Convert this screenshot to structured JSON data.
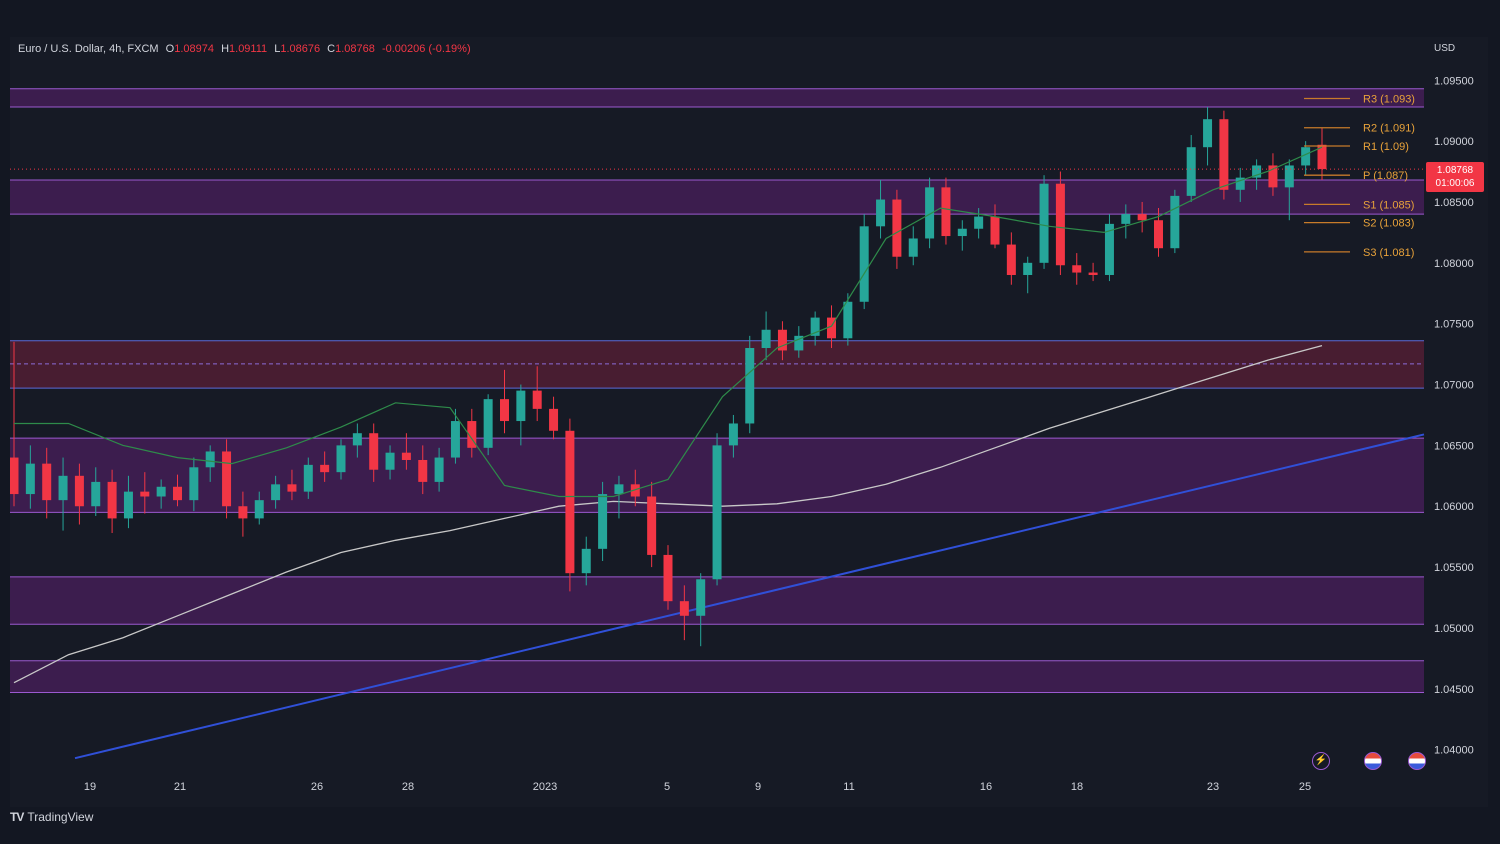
{
  "legend": {
    "symbol": "Euro / U.S. Dollar, 4h, FXCM",
    "open_key": "O",
    "open": "1.08974",
    "high_key": "H",
    "high": "1.09111",
    "low_key": "L",
    "low": "1.08676",
    "close_key": "C",
    "close": "1.08768",
    "change": "-0.00206 (-0.19%)"
  },
  "currency": "USD",
  "price_tag": {
    "price": "1.08768",
    "countdown": "01:00:06"
  },
  "brand": "TradingView",
  "colors": {
    "background": "#131722",
    "panel": "#161a25",
    "up": "#26a69a",
    "down": "#f23645",
    "zone": "#4a1f5c",
    "zone_red": "#5a1f35",
    "trendline": "#3050d8",
    "ma_long": "#c8c8c8",
    "ma_short": "#2e8b4a",
    "pivot": "#c77b2a",
    "text": "#d1d4dc"
  },
  "chart_data": {
    "type": "candlestick",
    "ylim": [
      1.038,
      1.0965
    ],
    "y_ticks": [
      "1.09500",
      "1.09000",
      "1.08500",
      "1.08000",
      "1.07500",
      "1.07000",
      "1.06500",
      "1.06000",
      "1.05500",
      "1.05000",
      "1.04500",
      "1.04000"
    ],
    "x_ticks": [
      "19",
      "21",
      "26",
      "28",
      "2023",
      "5",
      "9",
      "11",
      "16",
      "18",
      "23",
      "25"
    ],
    "zones": [
      {
        "from": 1.0928,
        "to": 1.0943,
        "color": "purple"
      },
      {
        "from": 1.084,
        "to": 1.0868,
        "color": "purple"
      },
      {
        "from": 1.0697,
        "to": 1.0736,
        "color": "red",
        "mid": 1.0717
      },
      {
        "from": 1.0595,
        "to": 1.0656,
        "color": "purple"
      },
      {
        "from": 1.0503,
        "to": 1.0542,
        "color": "purple"
      },
      {
        "from": 1.0447,
        "to": 1.0473,
        "color": "purple"
      }
    ],
    "pivots": [
      {
        "label": "R3 (1.093)",
        "value": 1.0935
      },
      {
        "label": "R2 (1.091)",
        "value": 1.0911
      },
      {
        "label": "R1 (1.09)",
        "value": 1.0896
      },
      {
        "label": "P (1.087)",
        "value": 1.0872
      },
      {
        "label": "S1 (1.085)",
        "value": 1.0848
      },
      {
        "label": "S2 (1.083)",
        "value": 1.0833
      },
      {
        "label": "S3 (1.081)",
        "value": 1.0809
      }
    ],
    "trendline": {
      "from": 1.0393,
      "to": 1.0659
    },
    "ma_long": [
      1.0455,
      1.0478,
      1.0492,
      1.051,
      1.0528,
      1.0546,
      1.0562,
      1.0572,
      1.058,
      1.059,
      1.06,
      1.0604,
      1.0602,
      1.06,
      1.0602,
      1.0608,
      1.0618,
      1.0632,
      1.0648,
      1.0664,
      1.0678,
      1.0692,
      1.0706,
      1.072,
      1.0732
    ],
    "ma_short": [
      1.0668,
      1.0668,
      1.065,
      1.064,
      1.0635,
      1.0648,
      1.0665,
      1.0685,
      1.0681,
      1.0617,
      1.0608,
      1.0608,
      1.0622,
      1.069,
      1.073,
      1.0748,
      1.082,
      1.0845,
      1.0838,
      1.083,
      1.0825,
      1.0838,
      1.086,
      1.0875,
      1.0895
    ],
    "candles": [
      {
        "o": 1.064,
        "h": 1.0735,
        "l": 1.06,
        "c": 1.061
      },
      {
        "o": 1.061,
        "h": 1.065,
        "l": 1.0598,
        "c": 1.0635
      },
      {
        "o": 1.0635,
        "h": 1.0648,
        "l": 1.059,
        "c": 1.0605
      },
      {
        "o": 1.0605,
        "h": 1.064,
        "l": 1.058,
        "c": 1.0625
      },
      {
        "o": 1.0625,
        "h": 1.0635,
        "l": 1.0585,
        "c": 1.06
      },
      {
        "o": 1.06,
        "h": 1.0632,
        "l": 1.0592,
        "c": 1.062
      },
      {
        "o": 1.062,
        "h": 1.063,
        "l": 1.0578,
        "c": 1.059
      },
      {
        "o": 1.059,
        "h": 1.0625,
        "l": 1.0582,
        "c": 1.0612
      },
      {
        "o": 1.0612,
        "h": 1.0628,
        "l": 1.0594,
        "c": 1.0608
      },
      {
        "o": 1.0608,
        "h": 1.0622,
        "l": 1.0598,
        "c": 1.0616
      },
      {
        "o": 1.0616,
        "h": 1.0626,
        "l": 1.06,
        "c": 1.0605
      },
      {
        "o": 1.0605,
        "h": 1.064,
        "l": 1.0596,
        "c": 1.0632
      },
      {
        "o": 1.0632,
        "h": 1.065,
        "l": 1.062,
        "c": 1.0645
      },
      {
        "o": 1.0645,
        "h": 1.0655,
        "l": 1.059,
        "c": 1.06
      },
      {
        "o": 1.06,
        "h": 1.0612,
        "l": 1.0575,
        "c": 1.059
      },
      {
        "o": 1.059,
        "h": 1.0612,
        "l": 1.0585,
        "c": 1.0605
      },
      {
        "o": 1.0605,
        "h": 1.0625,
        "l": 1.0598,
        "c": 1.0618
      },
      {
        "o": 1.0618,
        "h": 1.063,
        "l": 1.0605,
        "c": 1.0612
      },
      {
        "o": 1.0612,
        "h": 1.064,
        "l": 1.0606,
        "c": 1.0634
      },
      {
        "o": 1.0634,
        "h": 1.0645,
        "l": 1.062,
        "c": 1.0628
      },
      {
        "o": 1.0628,
        "h": 1.0655,
        "l": 1.0622,
        "c": 1.065
      },
      {
        "o": 1.065,
        "h": 1.0668,
        "l": 1.064,
        "c": 1.066
      },
      {
        "o": 1.066,
        "h": 1.0668,
        "l": 1.062,
        "c": 1.063
      },
      {
        "o": 1.063,
        "h": 1.065,
        "l": 1.0622,
        "c": 1.0644
      },
      {
        "o": 1.0644,
        "h": 1.066,
        "l": 1.063,
        "c": 1.0638
      },
      {
        "o": 1.0638,
        "h": 1.065,
        "l": 1.061,
        "c": 1.062
      },
      {
        "o": 1.062,
        "h": 1.0648,
        "l": 1.0612,
        "c": 1.064
      },
      {
        "o": 1.064,
        "h": 1.068,
        "l": 1.0635,
        "c": 1.067
      },
      {
        "o": 1.067,
        "h": 1.068,
        "l": 1.064,
        "c": 1.0648
      },
      {
        "o": 1.0648,
        "h": 1.0692,
        "l": 1.0642,
        "c": 1.0688
      },
      {
        "o": 1.0688,
        "h": 1.0712,
        "l": 1.066,
        "c": 1.067
      },
      {
        "o": 1.067,
        "h": 1.07,
        "l": 1.065,
        "c": 1.0695
      },
      {
        "o": 1.0695,
        "h": 1.0715,
        "l": 1.067,
        "c": 1.068
      },
      {
        "o": 1.068,
        "h": 1.069,
        "l": 1.0655,
        "c": 1.0662
      },
      {
        "o": 1.0662,
        "h": 1.0672,
        "l": 1.053,
        "c": 1.0545
      },
      {
        "o": 1.0545,
        "h": 1.0575,
        "l": 1.0535,
        "c": 1.0565
      },
      {
        "o": 1.0565,
        "h": 1.062,
        "l": 1.0555,
        "c": 1.061
      },
      {
        "o": 1.061,
        "h": 1.0625,
        "l": 1.059,
        "c": 1.0618
      },
      {
        "o": 1.0618,
        "h": 1.063,
        "l": 1.06,
        "c": 1.0608
      },
      {
        "o": 1.0608,
        "h": 1.062,
        "l": 1.055,
        "c": 1.056
      },
      {
        "o": 1.056,
        "h": 1.0568,
        "l": 1.0515,
        "c": 1.0522
      },
      {
        "o": 1.0522,
        "h": 1.0535,
        "l": 1.049,
        "c": 1.051
      },
      {
        "o": 1.051,
        "h": 1.0545,
        "l": 1.0485,
        "c": 1.054
      },
      {
        "o": 1.054,
        "h": 1.066,
        "l": 1.0535,
        "c": 1.065
      },
      {
        "o": 1.065,
        "h": 1.0675,
        "l": 1.064,
        "c": 1.0668
      },
      {
        "o": 1.0668,
        "h": 1.074,
        "l": 1.066,
        "c": 1.073
      },
      {
        "o": 1.073,
        "h": 1.076,
        "l": 1.072,
        "c": 1.0745
      },
      {
        "o": 1.0745,
        "h": 1.0752,
        "l": 1.072,
        "c": 1.0728
      },
      {
        "o": 1.0728,
        "h": 1.0748,
        "l": 1.0722,
        "c": 1.074
      },
      {
        "o": 1.074,
        "h": 1.076,
        "l": 1.0732,
        "c": 1.0755
      },
      {
        "o": 1.0755,
        "h": 1.0765,
        "l": 1.073,
        "c": 1.0738
      },
      {
        "o": 1.0738,
        "h": 1.0775,
        "l": 1.0732,
        "c": 1.0768
      },
      {
        "o": 1.0768,
        "h": 1.084,
        "l": 1.0762,
        "c": 1.083
      },
      {
        "o": 1.083,
        "h": 1.0868,
        "l": 1.082,
        "c": 1.0852
      },
      {
        "o": 1.0852,
        "h": 1.086,
        "l": 1.0795,
        "c": 1.0805
      },
      {
        "o": 1.0805,
        "h": 1.083,
        "l": 1.0798,
        "c": 1.082
      },
      {
        "o": 1.082,
        "h": 1.087,
        "l": 1.0812,
        "c": 1.0862
      },
      {
        "o": 1.0862,
        "h": 1.087,
        "l": 1.0815,
        "c": 1.0822
      },
      {
        "o": 1.0822,
        "h": 1.0835,
        "l": 1.081,
        "c": 1.0828
      },
      {
        "o": 1.0828,
        "h": 1.0845,
        "l": 1.082,
        "c": 1.0838
      },
      {
        "o": 1.0838,
        "h": 1.0848,
        "l": 1.0812,
        "c": 1.0815
      },
      {
        "o": 1.0815,
        "h": 1.0825,
        "l": 1.0782,
        "c": 1.079
      },
      {
        "o": 1.079,
        "h": 1.0805,
        "l": 1.0775,
        "c": 1.08
      },
      {
        "o": 1.08,
        "h": 1.0872,
        "l": 1.0795,
        "c": 1.0865
      },
      {
        "o": 1.0865,
        "h": 1.0875,
        "l": 1.079,
        "c": 1.0798
      },
      {
        "o": 1.0798,
        "h": 1.0808,
        "l": 1.0782,
        "c": 1.0792
      },
      {
        "o": 1.0792,
        "h": 1.08,
        "l": 1.0785,
        "c": 1.079
      },
      {
        "o": 1.079,
        "h": 1.084,
        "l": 1.0785,
        "c": 1.0832
      },
      {
        "o": 1.0832,
        "h": 1.0848,
        "l": 1.082,
        "c": 1.084
      },
      {
        "o": 1.084,
        "h": 1.085,
        "l": 1.0825,
        "c": 1.0835
      },
      {
        "o": 1.0835,
        "h": 1.0845,
        "l": 1.0805,
        "c": 1.0812
      },
      {
        "o": 1.0812,
        "h": 1.086,
        "l": 1.0808,
        "c": 1.0855
      },
      {
        "o": 1.0855,
        "h": 1.0905,
        "l": 1.085,
        "c": 1.0895
      },
      {
        "o": 1.0895,
        "h": 1.0928,
        "l": 1.088,
        "c": 1.0918
      },
      {
        "o": 1.0918,
        "h": 1.0925,
        "l": 1.0852,
        "c": 1.086
      },
      {
        "o": 1.086,
        "h": 1.0878,
        "l": 1.085,
        "c": 1.087
      },
      {
        "o": 1.087,
        "h": 1.0885,
        "l": 1.086,
        "c": 1.088
      },
      {
        "o": 1.088,
        "h": 1.089,
        "l": 1.0855,
        "c": 1.0862
      },
      {
        "o": 1.0862,
        "h": 1.0885,
        "l": 1.0835,
        "c": 1.088
      },
      {
        "o": 1.088,
        "h": 1.09,
        "l": 1.0872,
        "c": 1.0895
      },
      {
        "o": 1.0897,
        "h": 1.0911,
        "l": 1.0868,
        "c": 1.0877
      }
    ]
  }
}
